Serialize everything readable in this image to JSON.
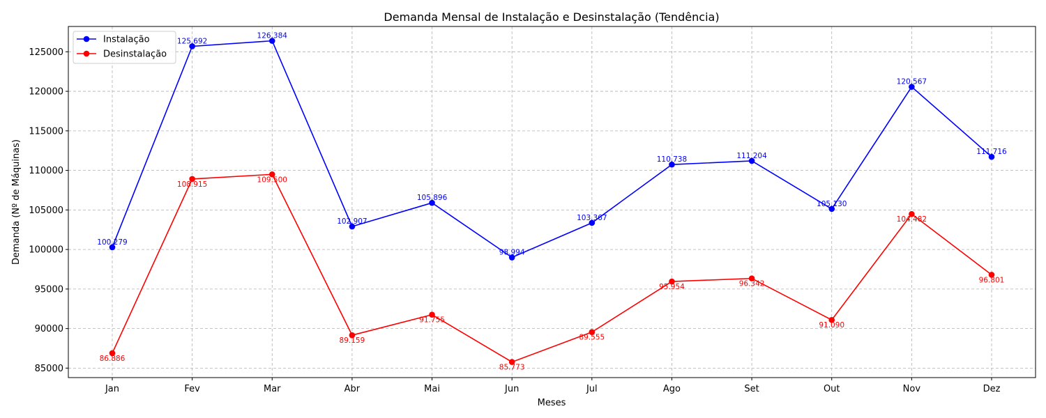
{
  "chart_data": {
    "type": "line",
    "title": "Demanda Mensal de Instalação e Desinstalação (Tendência)",
    "xlabel": "Meses",
    "ylabel": "Demanda (Nº de Máquinas)",
    "categories": [
      "Jan",
      "Fev",
      "Mar",
      "Abr",
      "Mai",
      "Jun",
      "Jul",
      "Ago",
      "Set",
      "Out",
      "Nov",
      "Dez"
    ],
    "ylim": [
      83800,
      128200
    ],
    "yticks": [
      85000,
      90000,
      95000,
      100000,
      105000,
      110000,
      115000,
      120000,
      125000
    ],
    "grid": true,
    "legend_position": "top-left",
    "series": [
      {
        "name": "Instalação",
        "color": "#0000ff",
        "label_position": "above",
        "values": [
          100279,
          125692,
          126384,
          102907,
          105896,
          98994,
          103367,
          110738,
          111204,
          105130,
          120567,
          111716
        ],
        "labels": [
          "100.279",
          "125.692",
          "126.384",
          "102.907",
          "105.896",
          "98.994",
          "103.367",
          "110.738",
          "111.204",
          "105.130",
          "120.567",
          "111.716"
        ]
      },
      {
        "name": "Desinstalação",
        "color": "#ff0000",
        "label_position": "below",
        "values": [
          86886,
          108915,
          109500,
          89159,
          91755,
          85773,
          89555,
          95954,
          96342,
          91090,
          104482,
          96801
        ],
        "labels": [
          "86.886",
          "108.915",
          "109.500",
          "89.159",
          "91.755",
          "85.773",
          "89.555",
          "95.954",
          "96.342",
          "91.090",
          "104.482",
          "96.801"
        ]
      }
    ]
  }
}
